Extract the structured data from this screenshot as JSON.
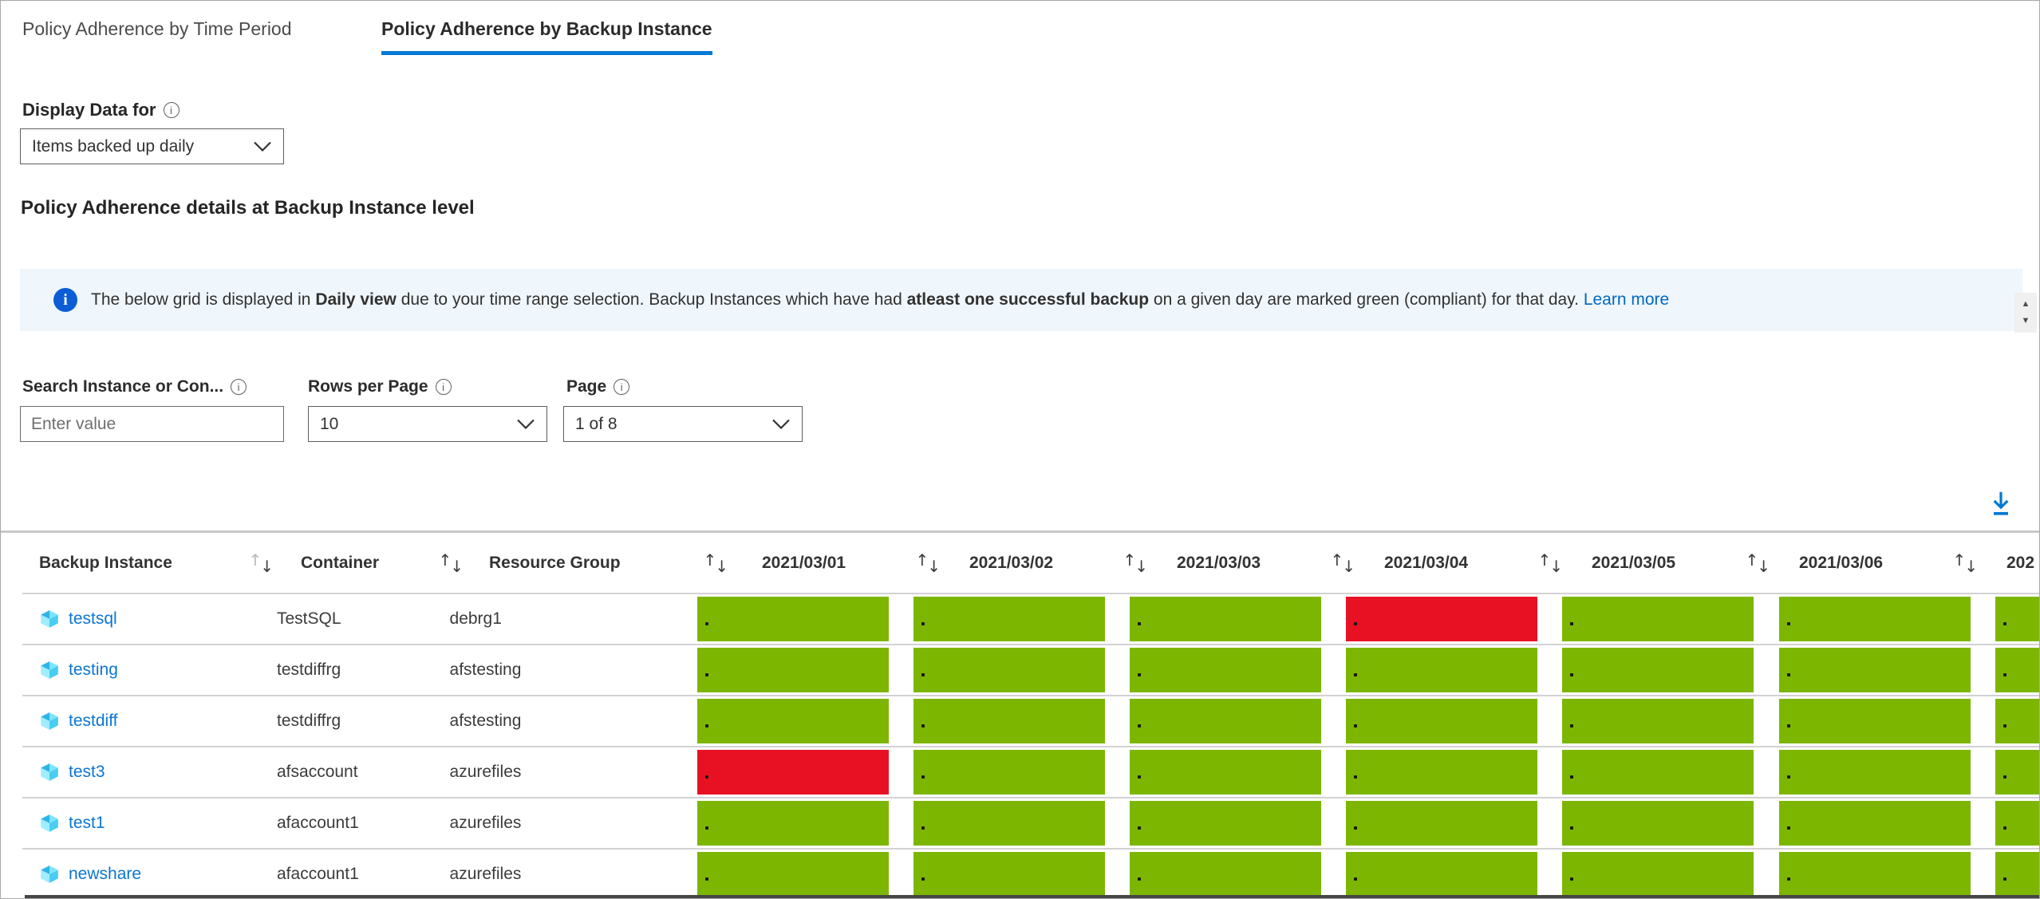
{
  "tabs": [
    {
      "label": "Policy Adherence by Time Period",
      "active": false
    },
    {
      "label": "Policy Adherence by Backup Instance",
      "active": true
    }
  ],
  "display_data": {
    "label": "Display Data for",
    "value": "Items backed up daily"
  },
  "section_title": "Policy Adherence details at Backup Instance level",
  "banner": {
    "segments": [
      {
        "text": "The below grid is displayed in ",
        "bold": false
      },
      {
        "text": "Daily view",
        "bold": true
      },
      {
        "text": " due to your time range selection. Backup Instances which have had ",
        "bold": false
      },
      {
        "text": "atleast one successful backup",
        "bold": true
      },
      {
        "text": " on a given day are marked green (compliant) for that day. ",
        "bold": false
      }
    ],
    "learn_more": "Learn more"
  },
  "filters": {
    "search": {
      "label": "Search Instance or Con...",
      "placeholder": "Enter value"
    },
    "rows_per_page": {
      "label": "Rows per Page",
      "value": "10"
    },
    "page": {
      "label": "Page",
      "value": "1 of 8"
    }
  },
  "toolbar": {
    "download_icon": "download-icon"
  },
  "table": {
    "text_columns": [
      {
        "label": "Backup Instance",
        "key": "instance"
      },
      {
        "label": "Container",
        "key": "container"
      },
      {
        "label": "Resource Group",
        "key": "resource_group"
      }
    ],
    "date_columns": [
      "2021/03/01",
      "2021/03/02",
      "2021/03/03",
      "2021/03/04",
      "2021/03/05",
      "2021/03/06",
      "202"
    ],
    "rows": [
      {
        "instance": "testsql",
        "container": "TestSQL",
        "resource_group": "debrg1",
        "statuses": [
          "green",
          "green",
          "green",
          "red",
          "green",
          "green",
          "green"
        ]
      },
      {
        "instance": "testing",
        "container": "testdiffrg",
        "resource_group": "afstesting",
        "statuses": [
          "green",
          "green",
          "green",
          "green",
          "green",
          "green",
          "green"
        ]
      },
      {
        "instance": "testdiff",
        "container": "testdiffrg",
        "resource_group": "afstesting",
        "statuses": [
          "green",
          "green",
          "green",
          "green",
          "green",
          "green",
          "green"
        ]
      },
      {
        "instance": "test3",
        "container": "afsaccount",
        "resource_group": "azurefiles",
        "statuses": [
          "red",
          "green",
          "green",
          "green",
          "green",
          "green",
          "green"
        ]
      },
      {
        "instance": "test1",
        "container": "afaccount1",
        "resource_group": "azurefiles",
        "statuses": [
          "green",
          "green",
          "green",
          "green",
          "green",
          "green",
          "green"
        ]
      },
      {
        "instance": "newshare",
        "container": "afaccount1",
        "resource_group": "azurefiles",
        "statuses": [
          "green",
          "green",
          "green",
          "green",
          "green",
          "green",
          "green"
        ]
      }
    ]
  },
  "colors": {
    "compliant_green": "#7db600",
    "noncompliant_red": "#e81123",
    "accent_blue": "#0078d4",
    "banner_bg": "#eff6fc",
    "banner_icon_blue": "#0b5cd5",
    "link_blue": "#0b76d2"
  }
}
